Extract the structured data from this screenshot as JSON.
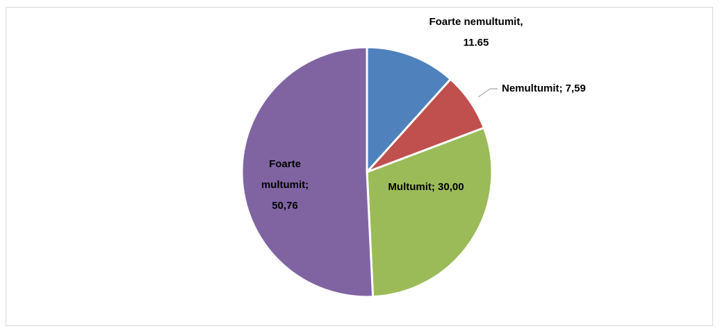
{
  "chart_data": {
    "type": "pie",
    "values": [
      11.65,
      7.59,
      30.0,
      50.76
    ],
    "value_labels": [
      "Foarte nemultumit, 11.65",
      "Nemultumit; 7,59",
      "Multumit; 30,00",
      "Foarte multumit; 50,76"
    ],
    "colors": [
      "#4f81bd",
      "#c0504d",
      "#9bbb59",
      "#8064a2"
    ]
  }
}
